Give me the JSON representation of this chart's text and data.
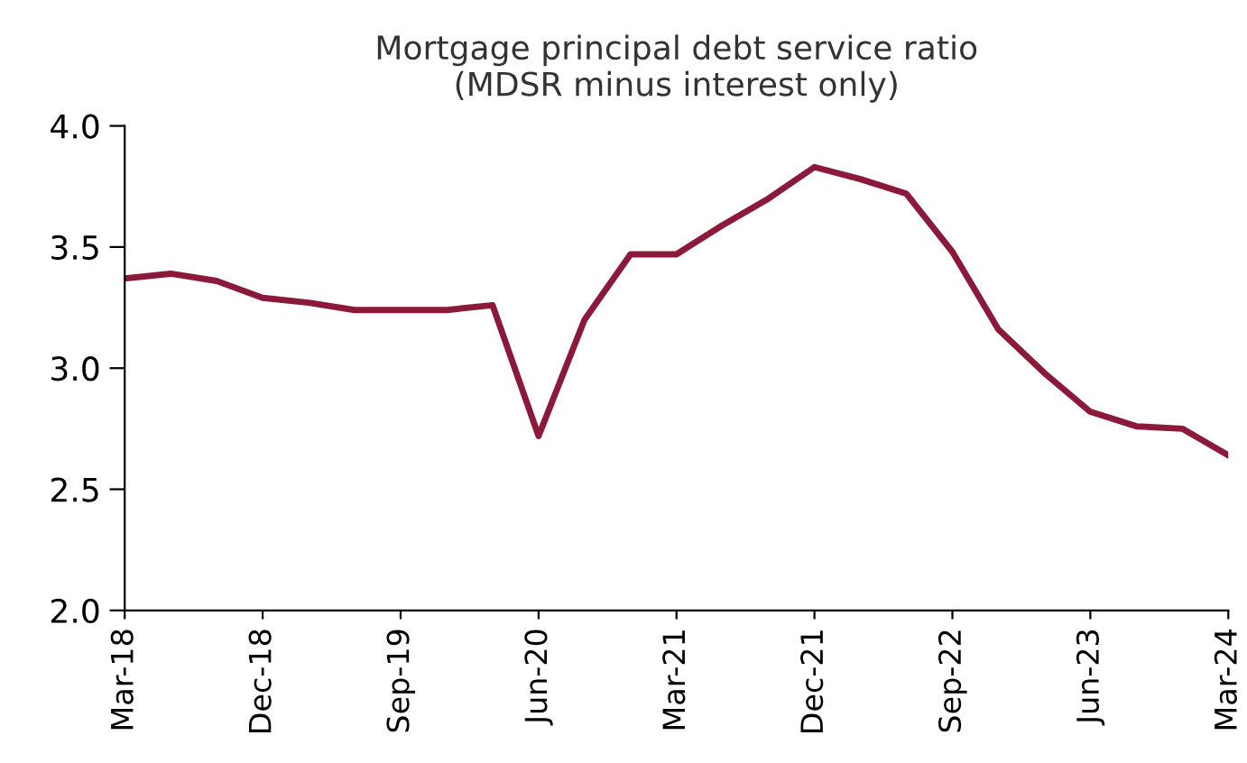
{
  "chart_data": {
    "type": "line",
    "title": "Mortgage principal debt service ratio\n(MDSR minus interest only)",
    "categories": [
      "Mar-18",
      null,
      null,
      "Dec-18",
      null,
      null,
      "Sep-19",
      null,
      null,
      "Jun-20",
      null,
      null,
      "Mar-21",
      null,
      null,
      "Dec-21",
      null,
      null,
      "Sep-22",
      null,
      null,
      "Jun-23",
      null,
      null,
      "Mar-24"
    ],
    "series": [
      {
        "color": "#8b1a3a",
        "values": [
          3.37,
          3.39,
          3.36,
          3.29,
          3.27,
          3.24,
          3.24,
          3.24,
          3.26,
          2.72,
          3.2,
          3.47,
          3.47,
          3.59,
          3.7,
          3.83,
          3.78,
          3.72,
          3.48,
          3.16,
          2.98,
          2.82,
          2.76,
          2.75,
          2.64
        ]
      }
    ],
    "ylim": [
      2.0,
      4.0
    ],
    "yticks": [
      {
        "value": 2.0,
        "label": "2.0"
      },
      {
        "value": 2.5,
        "label": "2.5"
      },
      {
        "value": 3.0,
        "label": "3.0"
      },
      {
        "value": 3.5,
        "label": "3.5"
      },
      {
        "value": 4.0,
        "label": "4.0"
      }
    ],
    "grid": false,
    "legend": false,
    "marker": "none",
    "line_style": "solid"
  }
}
